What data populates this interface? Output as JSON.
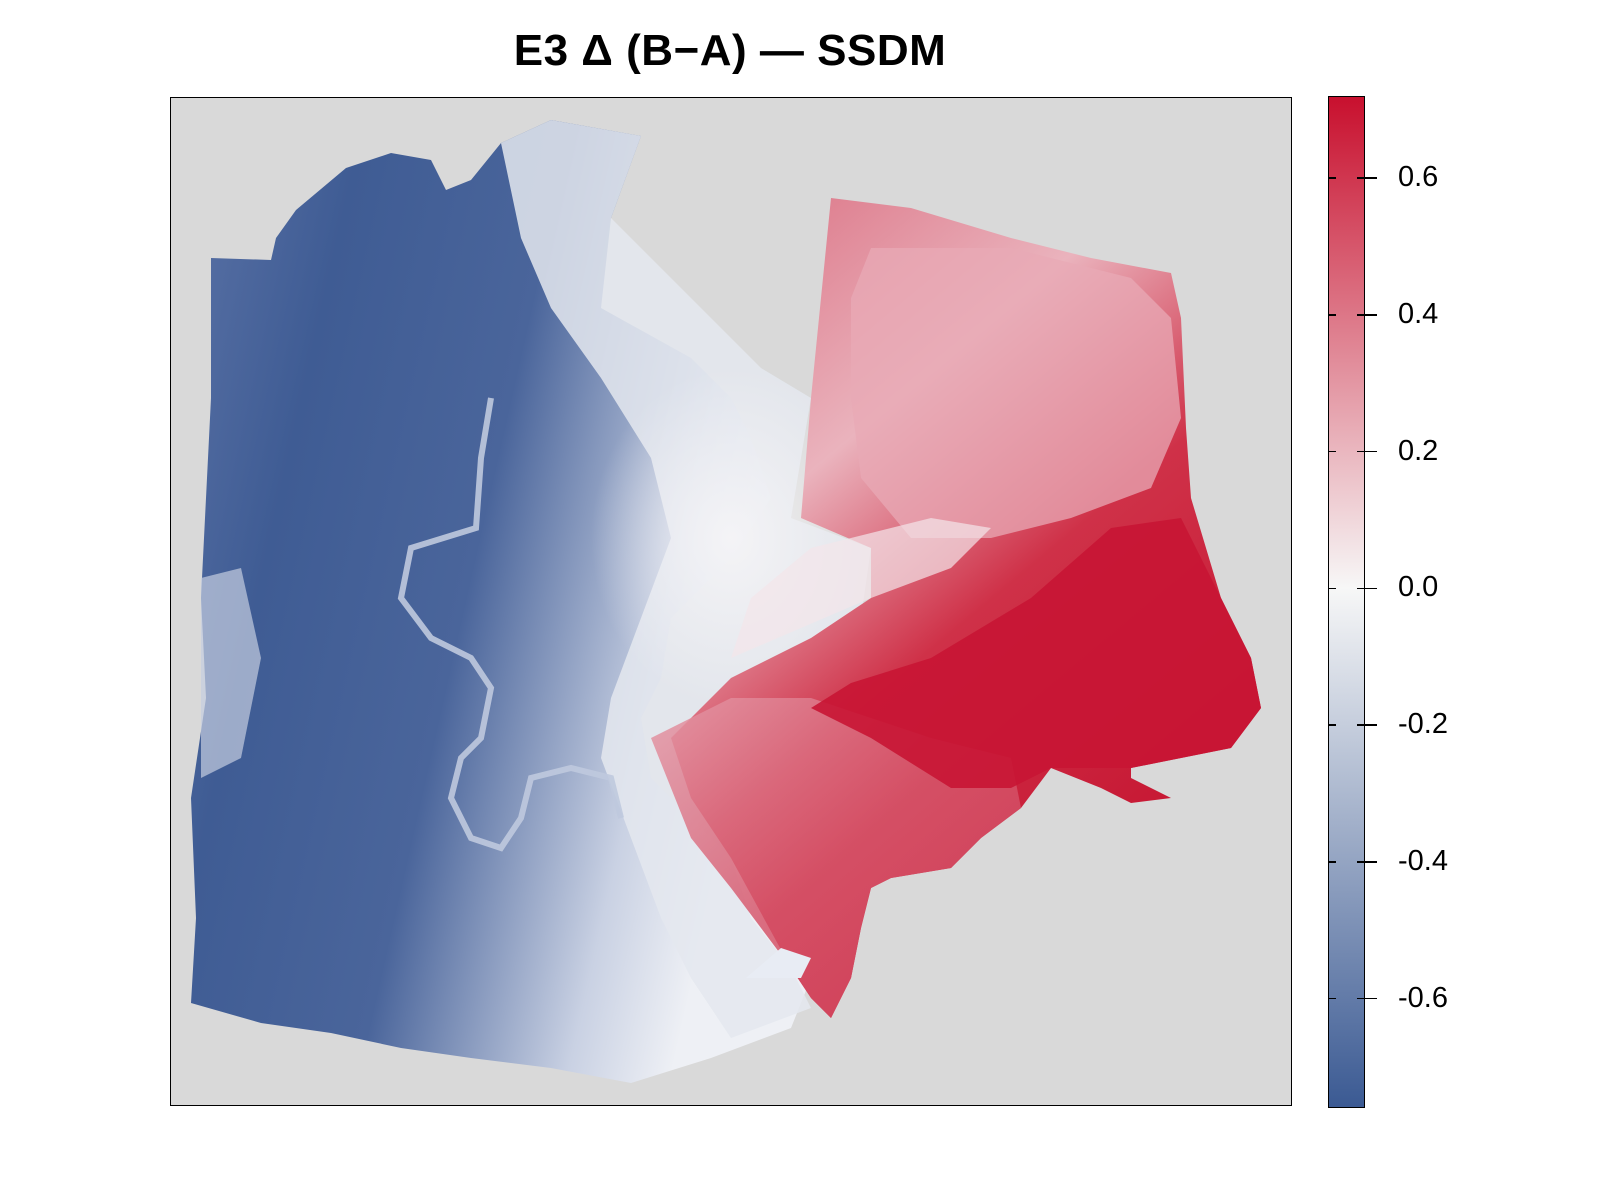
{
  "title": "E3 Δ (B−A) — SSDM",
  "map": {
    "background_color": "#d9d9d9",
    "regions": [
      {
        "name": "western-block",
        "sign": "negative",
        "dominant_color": "#3b5a93"
      },
      {
        "name": "transition-zone",
        "sign": "near-zero",
        "dominant_color": "#f2f2f5"
      },
      {
        "name": "eastern-block",
        "sign": "positive",
        "dominant_color": "#c8102e"
      }
    ]
  },
  "legend": {
    "min": -0.76,
    "max": 0.72,
    "colors": {
      "low": "#3b5a93",
      "mid": "#f7f7f7",
      "high": "#c8102e"
    },
    "ticks": [
      {
        "value": 0.6,
        "label": "0.6"
      },
      {
        "value": 0.4,
        "label": "0.4"
      },
      {
        "value": 0.2,
        "label": "0.2"
      },
      {
        "value": 0.0,
        "label": "0.0"
      },
      {
        "value": -0.2,
        "label": "-0.2"
      },
      {
        "value": -0.4,
        "label": "-0.4"
      },
      {
        "value": -0.6,
        "label": "-0.6"
      }
    ]
  }
}
